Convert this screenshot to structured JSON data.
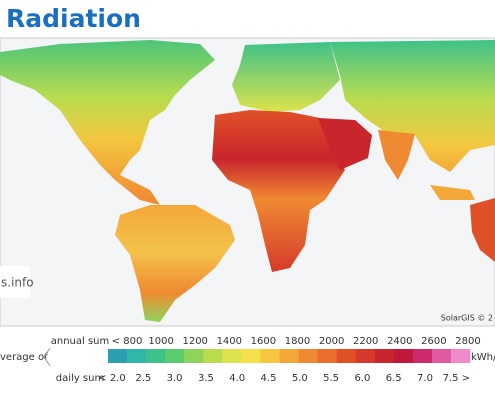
{
  "header": {
    "title": "Radiation"
  },
  "map": {
    "watermark": "s.info",
    "credit": "SolarGIS © 2"
  },
  "legend": {
    "annual_title": "annual sum",
    "annual_labels": [
      "< 800",
      "1000",
      "1200",
      "1400",
      "1600",
      "1800",
      "2000",
      "2200",
      "2400",
      "2600",
      "2800"
    ],
    "side_label": "verage of",
    "unit": "kWh/m",
    "daily_title": "daily sum",
    "daily_labels": [
      "< 2.0",
      "2.5",
      "3.0",
      "3.5",
      "4.0",
      "4.5",
      "5.0",
      "5.5",
      "6.0",
      "6.5",
      "7.0",
      "7.5 >"
    ],
    "colors": [
      "#2aa0b0",
      "#30b7a8",
      "#3fc28a",
      "#5ccc6a",
      "#8ed45a",
      "#b9dc4e",
      "#dde34a",
      "#f3e04a",
      "#f7c53f",
      "#f5a83a",
      "#f08a32",
      "#ea6d2c",
      "#e05128",
      "#d53a2a",
      "#c8252c",
      "#c0173a",
      "#cc2a6a",
      "#e05aa0",
      "#f08ac8"
    ]
  }
}
